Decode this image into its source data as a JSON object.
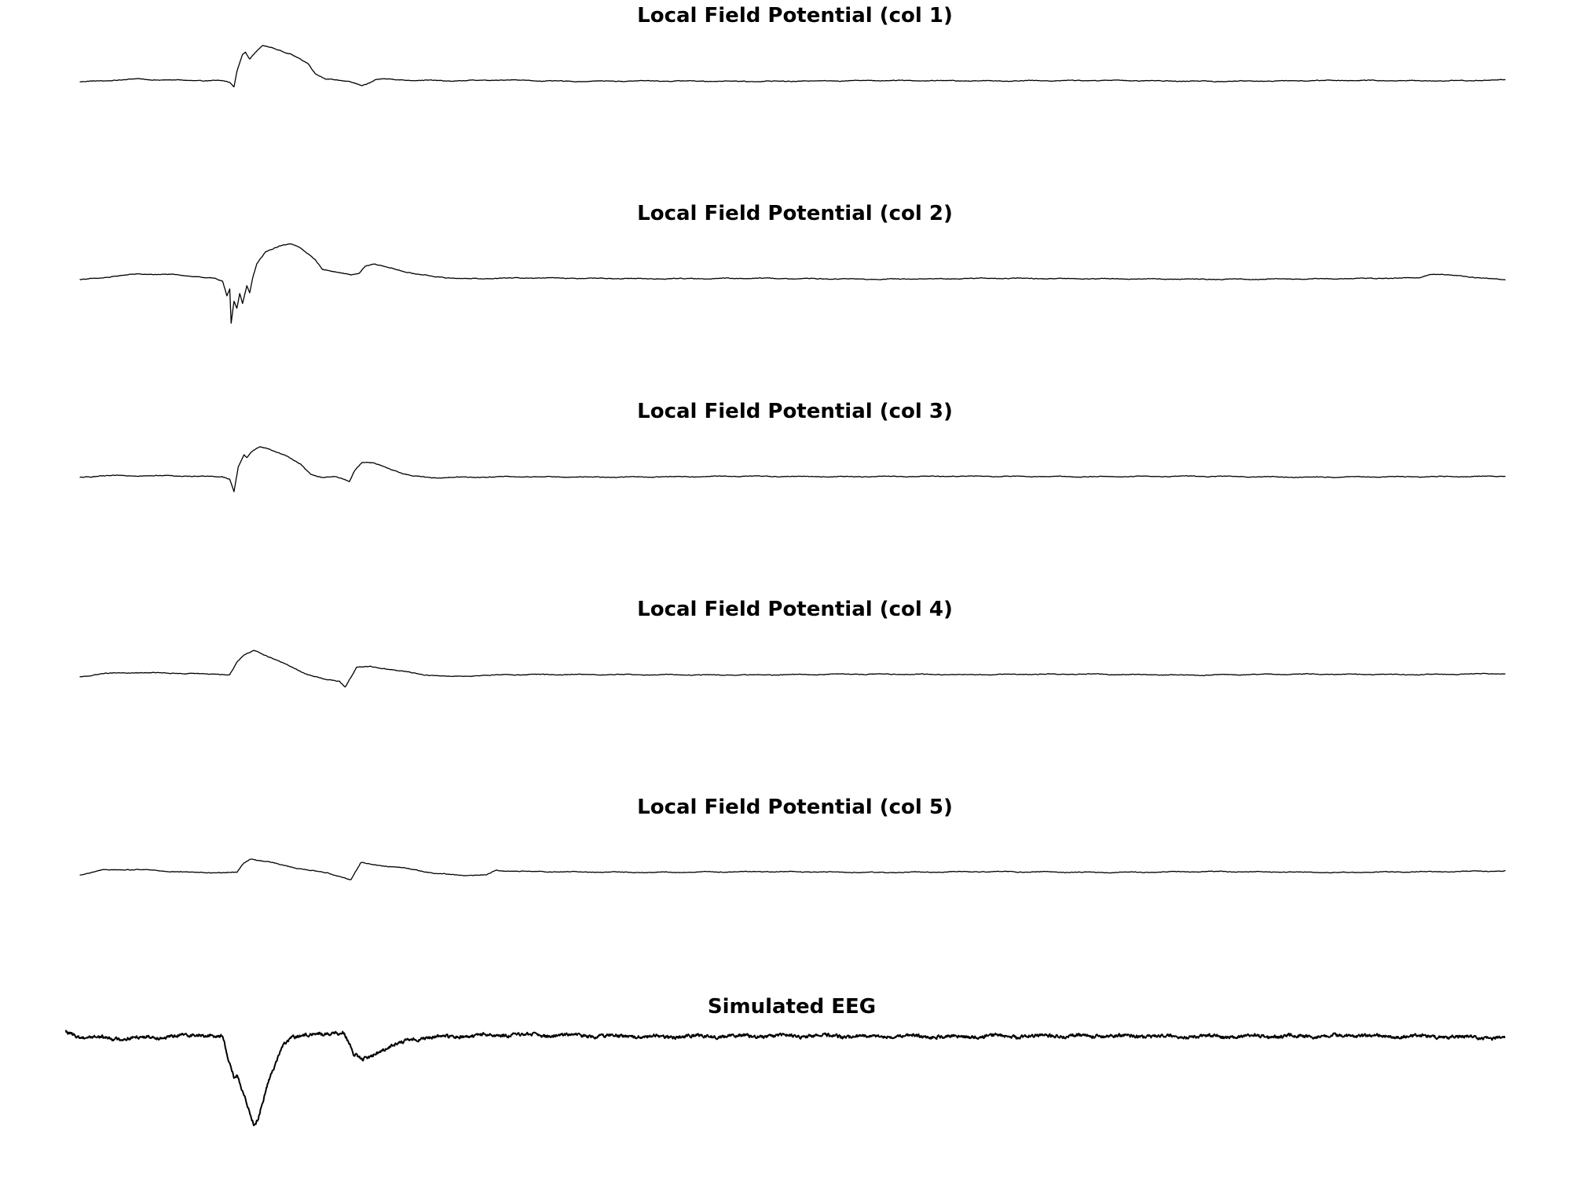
{
  "figure": {
    "background": "#ffffff",
    "trace_color": "#000000"
  },
  "chart_data": [
    {
      "type": "line",
      "title": "Local Field Potential (col 1)",
      "xlabel": "",
      "ylabel": "",
      "axes_visible": false,
      "grid": false,
      "ylim": [
        -1.0,
        1.0
      ],
      "noise": 0.012,
      "x_range": [
        0,
        1000
      ],
      "keypoints": [
        [
          0,
          -0.02
        ],
        [
          15,
          0.0
        ],
        [
          40,
          0.04
        ],
        [
          55,
          0.02
        ],
        [
          100,
          0.0
        ],
        [
          105,
          -0.03
        ],
        [
          108,
          -0.12
        ],
        [
          110,
          0.2
        ],
        [
          114,
          0.55
        ],
        [
          116,
          0.6
        ],
        [
          119,
          0.45
        ],
        [
          122,
          0.55
        ],
        [
          128,
          0.72
        ],
        [
          135,
          0.68
        ],
        [
          148,
          0.55
        ],
        [
          160,
          0.35
        ],
        [
          165,
          0.15
        ],
        [
          172,
          0.05
        ],
        [
          180,
          0.02
        ],
        [
          190,
          -0.03
        ],
        [
          198,
          -0.09
        ],
        [
          203,
          -0.04
        ],
        [
          207,
          0.02
        ],
        [
          212,
          0.04
        ],
        [
          225,
          0.02
        ],
        [
          260,
          0.0
        ],
        [
          300,
          0.02
        ],
        [
          340,
          -0.01
        ],
        [
          400,
          0.0
        ],
        [
          480,
          -0.01
        ],
        [
          560,
          0.01
        ],
        [
          640,
          0.0
        ],
        [
          720,
          0.01
        ],
        [
          800,
          -0.01
        ],
        [
          880,
          0.01
        ],
        [
          960,
          0.0
        ],
        [
          1000,
          0.02
        ]
      ]
    },
    {
      "type": "line",
      "title": "Local Field Potential (col 2)",
      "xlabel": "",
      "ylabel": "",
      "axes_visible": false,
      "grid": false,
      "ylim": [
        -1.0,
        1.0
      ],
      "noise": 0.012,
      "x_range": [
        0,
        1000
      ],
      "keypoints": [
        [
          0,
          -0.02
        ],
        [
          15,
          0.02
        ],
        [
          40,
          0.1
        ],
        [
          70,
          0.08
        ],
        [
          95,
          0.0
        ],
        [
          100,
          -0.05
        ],
        [
          103,
          -0.35
        ],
        [
          105,
          -0.2
        ],
        [
          106,
          -0.9
        ],
        [
          108,
          -0.45
        ],
        [
          110,
          -0.6
        ],
        [
          112,
          -0.3
        ],
        [
          114,
          -0.5
        ],
        [
          117,
          -0.15
        ],
        [
          119,
          -0.3
        ],
        [
          121,
          0.0
        ],
        [
          124,
          0.3
        ],
        [
          130,
          0.55
        ],
        [
          140,
          0.68
        ],
        [
          148,
          0.72
        ],
        [
          155,
          0.62
        ],
        [
          165,
          0.4
        ],
        [
          170,
          0.2
        ],
        [
          180,
          0.13
        ],
        [
          190,
          0.08
        ],
        [
          196,
          0.12
        ],
        [
          200,
          0.26
        ],
        [
          206,
          0.3
        ],
        [
          218,
          0.22
        ],
        [
          235,
          0.1
        ],
        [
          250,
          0.04
        ],
        [
          270,
          0.0
        ],
        [
          320,
          0.02
        ],
        [
          400,
          0.0
        ],
        [
          480,
          0.01
        ],
        [
          560,
          -0.01
        ],
        [
          640,
          0.01
        ],
        [
          720,
          0.0
        ],
        [
          800,
          -0.01
        ],
        [
          880,
          0.0
        ],
        [
          940,
          0.02
        ],
        [
          948,
          0.1
        ],
        [
          960,
          0.08
        ],
        [
          975,
          0.04
        ],
        [
          990,
          0.0
        ],
        [
          1000,
          -0.02
        ]
      ]
    },
    {
      "type": "line",
      "title": "Local Field Potential (col 3)",
      "xlabel": "",
      "ylabel": "",
      "axes_visible": false,
      "grid": false,
      "ylim": [
        -1.0,
        1.0
      ],
      "noise": 0.012,
      "x_range": [
        0,
        1000
      ],
      "keypoints": [
        [
          0,
          -0.02
        ],
        [
          15,
          0.02
        ],
        [
          60,
          0.02
        ],
        [
          100,
          0.0
        ],
        [
          105,
          -0.05
        ],
        [
          108,
          -0.3
        ],
        [
          111,
          0.2
        ],
        [
          115,
          0.45
        ],
        [
          117,
          0.38
        ],
        [
          120,
          0.5
        ],
        [
          126,
          0.62
        ],
        [
          132,
          0.58
        ],
        [
          145,
          0.42
        ],
        [
          155,
          0.25
        ],
        [
          162,
          0.05
        ],
        [
          170,
          -0.02
        ],
        [
          178,
          0.0
        ],
        [
          185,
          -0.05
        ],
        [
          189,
          -0.1
        ],
        [
          193,
          0.15
        ],
        [
          198,
          0.3
        ],
        [
          206,
          0.28
        ],
        [
          218,
          0.15
        ],
        [
          232,
          0.02
        ],
        [
          245,
          -0.02
        ],
        [
          300,
          0.0
        ],
        [
          380,
          -0.01
        ],
        [
          460,
          0.01
        ],
        [
          540,
          0.0
        ],
        [
          620,
          0.01
        ],
        [
          700,
          0.0
        ],
        [
          780,
          0.01
        ],
        [
          860,
          -0.01
        ],
        [
          940,
          0.0
        ],
        [
          1000,
          0.01
        ]
      ]
    },
    {
      "type": "line",
      "title": "Local Field Potential (col 4)",
      "xlabel": "",
      "ylabel": "",
      "axes_visible": false,
      "grid": false,
      "ylim": [
        -1.0,
        1.0
      ],
      "noise": 0.012,
      "x_range": [
        0,
        1000
      ],
      "keypoints": [
        [
          0,
          -0.05
        ],
        [
          15,
          0.02
        ],
        [
          40,
          0.04
        ],
        [
          80,
          0.02
        ],
        [
          105,
          0.0
        ],
        [
          110,
          0.25
        ],
        [
          115,
          0.4
        ],
        [
          122,
          0.5
        ],
        [
          130,
          0.4
        ],
        [
          145,
          0.2
        ],
        [
          160,
          0.0
        ],
        [
          172,
          -0.1
        ],
        [
          182,
          -0.14
        ],
        [
          186,
          -0.25
        ],
        [
          190,
          -0.05
        ],
        [
          194,
          0.15
        ],
        [
          204,
          0.16
        ],
        [
          220,
          0.1
        ],
        [
          240,
          0.0
        ],
        [
          262,
          -0.04
        ],
        [
          300,
          0.0
        ],
        [
          380,
          0.0
        ],
        [
          460,
          -0.01
        ],
        [
          540,
          0.01
        ],
        [
          620,
          0.0
        ],
        [
          700,
          0.01
        ],
        [
          780,
          -0.01
        ],
        [
          860,
          0.01
        ],
        [
          940,
          0.0
        ],
        [
          1000,
          0.02
        ]
      ]
    },
    {
      "type": "line",
      "title": "Local Field Potential (col 5)",
      "xlabel": "",
      "ylabel": "",
      "axes_visible": false,
      "grid": false,
      "ylim": [
        -1.0,
        1.0
      ],
      "noise": 0.012,
      "x_range": [
        0,
        1000
      ],
      "keypoints": [
        [
          0,
          -0.05
        ],
        [
          15,
          0.05
        ],
        [
          40,
          0.06
        ],
        [
          80,
          0.0
        ],
        [
          110,
          0.0
        ],
        [
          115,
          0.2
        ],
        [
          120,
          0.28
        ],
        [
          132,
          0.22
        ],
        [
          150,
          0.1
        ],
        [
          175,
          -0.02
        ],
        [
          185,
          -0.1
        ],
        [
          190,
          -0.15
        ],
        [
          194,
          0.05
        ],
        [
          197,
          0.2
        ],
        [
          210,
          0.15
        ],
        [
          230,
          0.08
        ],
        [
          250,
          -0.02
        ],
        [
          270,
          -0.06
        ],
        [
          285,
          -0.05
        ],
        [
          292,
          0.04
        ],
        [
          320,
          0.02
        ],
        [
          400,
          0.0
        ],
        [
          480,
          0.02
        ],
        [
          560,
          0.0
        ],
        [
          640,
          0.02
        ],
        [
          720,
          0.0
        ],
        [
          800,
          0.02
        ],
        [
          880,
          0.0
        ],
        [
          960,
          0.02
        ],
        [
          1000,
          0.03
        ]
      ]
    },
    {
      "type": "line",
      "title": "Simulated EEG",
      "xlabel": "",
      "ylabel": "",
      "axes_visible": false,
      "grid": false,
      "ylim": [
        -1.0,
        1.0
      ],
      "noise": 0.02,
      "x_range": [
        -10,
        1000
      ],
      "keypoints": [
        [
          -10,
          0.05
        ],
        [
          0,
          0.0
        ],
        [
          25,
          -0.02
        ],
        [
          60,
          0.0
        ],
        [
          90,
          0.02
        ],
        [
          100,
          0.0
        ],
        [
          104,
          -0.25
        ],
        [
          108,
          -0.45
        ],
        [
          110,
          -0.42
        ],
        [
          113,
          -0.55
        ],
        [
          118,
          -0.75
        ],
        [
          122,
          -0.95
        ],
        [
          125,
          -0.88
        ],
        [
          132,
          -0.5
        ],
        [
          142,
          -0.1
        ],
        [
          148,
          0.0
        ],
        [
          165,
          0.02
        ],
        [
          185,
          0.05
        ],
        [
          192,
          -0.2
        ],
        [
          198,
          -0.25
        ],
        [
          215,
          -0.12
        ],
        [
          235,
          -0.02
        ],
        [
          260,
          0.0
        ],
        [
          300,
          0.02
        ],
        [
          400,
          0.0
        ],
        [
          500,
          0.01
        ],
        [
          600,
          0.0
        ],
        [
          700,
          0.01
        ],
        [
          800,
          0.0
        ],
        [
          900,
          0.01
        ],
        [
          1000,
          -0.01
        ]
      ]
    }
  ]
}
